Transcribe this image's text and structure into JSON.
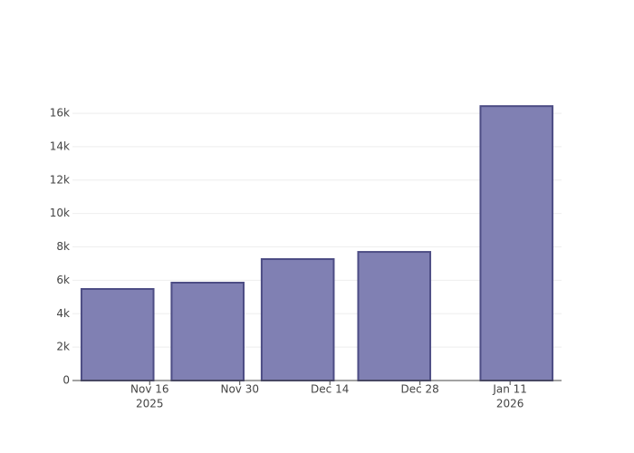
{
  "chart_data": {
    "type": "bar",
    "x": [
      "2025-11-11",
      "2025-11-25",
      "2025-12-09",
      "2025-12-24",
      "2026-01-12"
    ],
    "values": [
      5480,
      5860,
      7270,
      7700,
      16430
    ],
    "color": "#8080b3",
    "edge_color": "#4d4d85",
    "xlim": [
      "2025-11-04",
      "2026-01-19"
    ],
    "xticks": [
      {
        "value": "2025-11-16",
        "label": "Nov 16",
        "sublabel": "2025"
      },
      {
        "value": "2025-11-30",
        "label": "Nov 30"
      },
      {
        "value": "2025-12-14",
        "label": "Dec 14"
      },
      {
        "value": "2025-12-28",
        "label": "Dec 28"
      },
      {
        "value": "2026-01-11",
        "label": "Jan 11",
        "sublabel": "2026"
      }
    ],
    "ylim": [
      0,
      17360
    ],
    "yticks": [
      0,
      {
        "value": 2000,
        "label": "2k"
      },
      {
        "value": 4000,
        "label": "4k"
      },
      {
        "value": 6000,
        "label": "6k"
      },
      {
        "value": 8000,
        "label": "8k"
      },
      {
        "value": 10000,
        "label": "10k"
      },
      {
        "value": 12000,
        "label": "12k"
      },
      {
        "value": 14000,
        "label": "14k"
      },
      {
        "value": 16000,
        "label": "16k"
      }
    ],
    "grid": true
  }
}
